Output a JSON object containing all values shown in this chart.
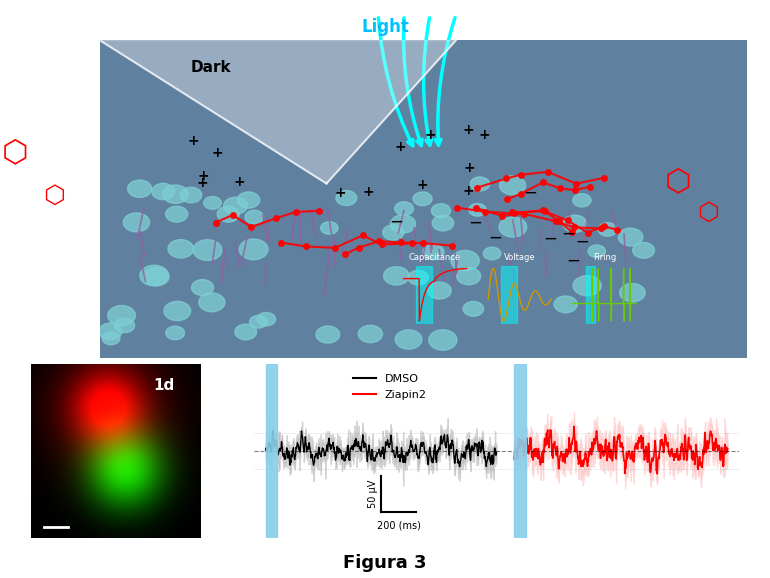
{
  "title": "Figura 3",
  "title_fontsize": 13,
  "title_fontweight": "bold",
  "legend_labels": [
    "DMSO",
    "Ziapin2"
  ],
  "legend_colors": [
    "black",
    "red"
  ],
  "xlabel": "200 (ms)",
  "ylabel": "50 μV",
  "light_label": "Light",
  "dark_label": "Dark",
  "label_1d": "1d",
  "cyan_bar_color": "#87CEEB",
  "background_color": "white",
  "top_panel_bg": "#6080a0",
  "signal_segment1_color": "black",
  "signal_segment2_color": "red",
  "shadow_color": "#cccccc"
}
